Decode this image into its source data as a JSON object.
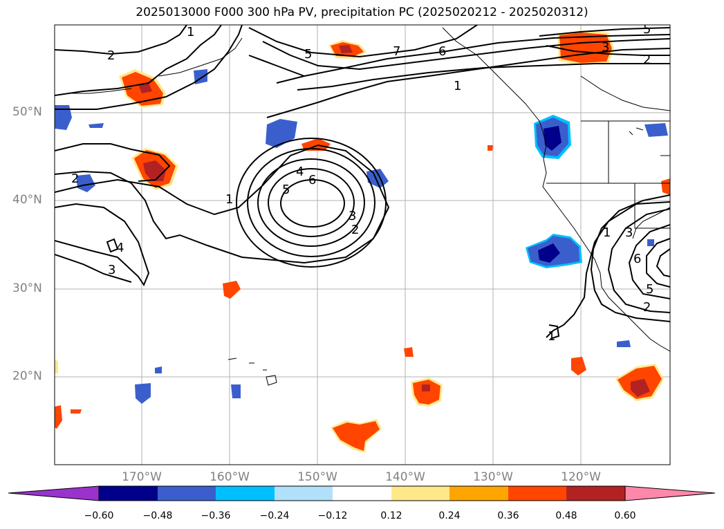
{
  "title": "2025013000 F000 300 hPa PV, precipitation PC (2025020212 - 2025020312)",
  "map": {
    "lat_labels": [
      "50°N",
      "40°N",
      "30°N",
      "20°N"
    ],
    "lon_labels": [
      "170°W",
      "160°W",
      "150°W",
      "140°W",
      "130°W",
      "120°W"
    ],
    "contour_labels": [
      "1",
      "2",
      "3",
      "4",
      "5",
      "6",
      "7"
    ],
    "colors": {
      "grid": "#b0b0b0",
      "coast": "#000000",
      "contour": "#000000"
    }
  },
  "colorbar": {
    "ticks": [
      "−0.60",
      "−0.48",
      "−0.36",
      "−0.24",
      "−0.12",
      "0.12",
      "0.24",
      "0.36",
      "0.48",
      "0.60"
    ],
    "colors": [
      "#9933cc",
      "#00008b",
      "#3a5fcd",
      "#00bfff",
      "#b0e0fa",
      "#ffffff",
      "#ffe88a",
      "#ffa500",
      "#ff4500",
      "#b22222",
      "#ff88aa"
    ]
  }
}
